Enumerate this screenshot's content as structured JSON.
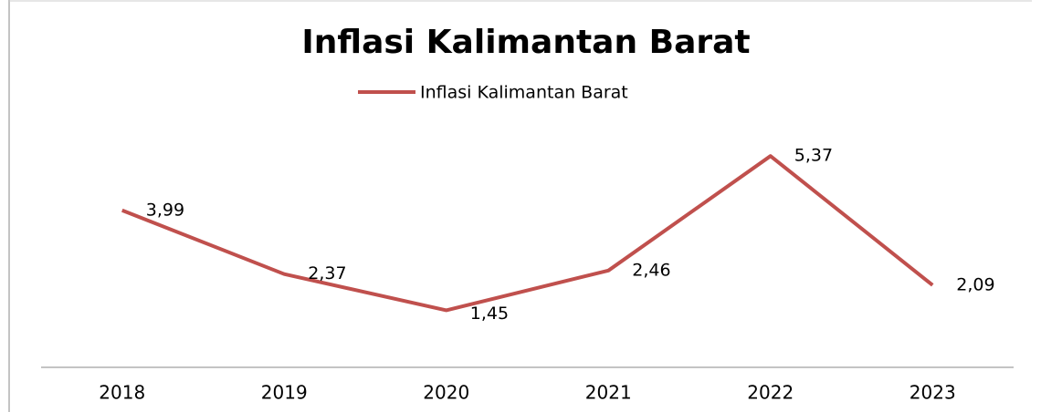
{
  "chart_data": {
    "type": "line",
    "title": "Inflasi Kalimantan Barat",
    "categories": [
      "2018",
      "2019",
      "2020",
      "2021",
      "2022",
      "2023"
    ],
    "series": [
      {
        "name": "Inflasi Kalimantan Barat",
        "color": "#c0504d",
        "values": [
          3.99,
          2.37,
          1.45,
          2.46,
          5.37,
          2.09
        ],
        "value_labels": [
          "3,99",
          "2,37",
          "1,45",
          "2,46",
          "5,37",
          "2,09"
        ]
      }
    ],
    "ylim": [
      0,
      6
    ],
    "legend": "top"
  }
}
